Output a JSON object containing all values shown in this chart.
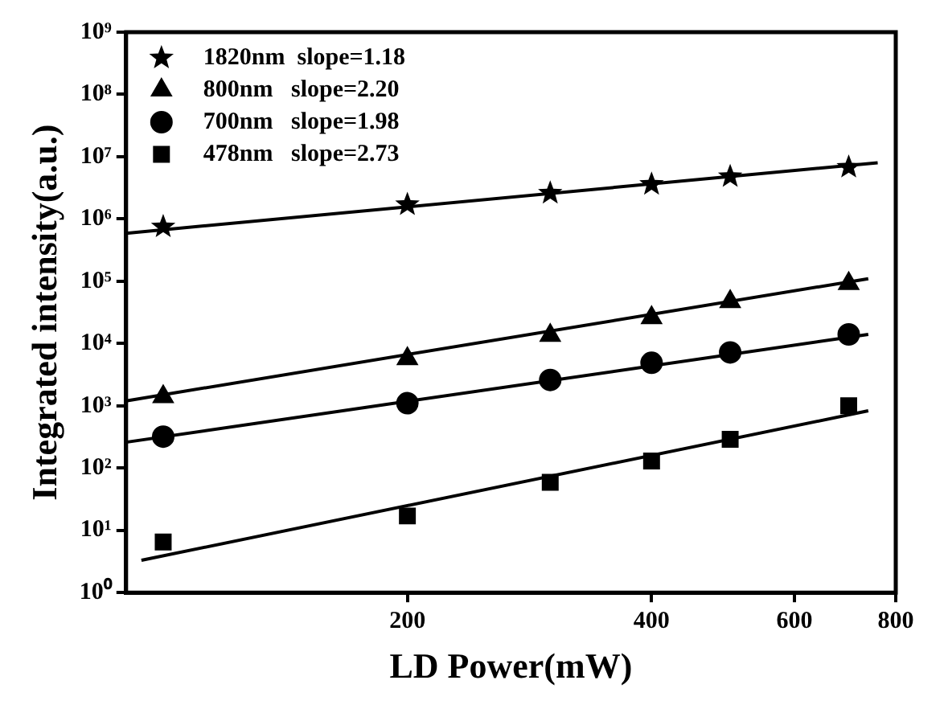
{
  "chart_data": {
    "type": "scatter",
    "xlabel": "LD Power(mW)",
    "ylabel": "Integrated intensity(a.u.)",
    "log": "xy",
    "xlim": [
      90,
      800
    ],
    "xticks": [
      200,
      400,
      600,
      800
    ],
    "ylim": [
      1,
      1000000000
    ],
    "yticks": [
      {
        "value": 1,
        "label": "10⁰"
      },
      {
        "value": 10,
        "label": "10¹"
      },
      {
        "value": 100,
        "label": "10²"
      },
      {
        "value": 1000,
        "label": "10³"
      },
      {
        "value": 10000,
        "label": "10⁴"
      },
      {
        "value": 100000,
        "label": "10⁵"
      },
      {
        "value": 1000000,
        "label": "10⁶"
      },
      {
        "value": 10000000,
        "label": "10⁷"
      },
      {
        "value": 100000000,
        "label": "10⁸"
      },
      {
        "value": 1000000000,
        "label": "10⁹"
      }
    ],
    "grid": false,
    "legend": "top left",
    "series": [
      {
        "name": "1820nm  slope=1.18",
        "color": "#000000",
        "marker": "star",
        "x": [
          100,
          200,
          300,
          400,
          500,
          700
        ],
        "values": [
          750000,
          1700000,
          2600000,
          3600000,
          4800000,
          6800000
        ]
      },
      {
        "name": "800nm   slope=2.20",
        "color": "#000000",
        "marker": "triangle",
        "x": [
          100,
          200,
          300,
          400,
          500,
          700
        ],
        "values": [
          1400,
          5700,
          13500,
          26000,
          47000,
          92000
        ]
      },
      {
        "name": "700nm   slope=1.98",
        "color": "#000000",
        "marker": "circle",
        "x": [
          100,
          200,
          300,
          400,
          500,
          700
        ],
        "values": [
          320,
          1100,
          2600,
          4900,
          7200,
          14000
        ]
      },
      {
        "name": "478nm   slope=2.73",
        "color": "#000000",
        "marker": "square",
        "x": [
          100,
          200,
          300,
          400,
          500,
          700
        ],
        "values": [
          6.5,
          17,
          59,
          130,
          290,
          1000
        ]
      },
      {
        "type": "line",
        "color": "#000000",
        "marker": "none",
        "x": [
          90,
          760
        ],
        "values": [
          590000,
          8000000
        ]
      },
      {
        "type": "line",
        "color": "#000000",
        "marker": "none",
        "x": [
          90,
          740
        ],
        "values": [
          1200,
          110000
        ]
      },
      {
        "type": "line",
        "color": "#000000",
        "marker": "none",
        "x": [
          90,
          740
        ],
        "values": [
          260,
          14000
        ]
      },
      {
        "type": "line",
        "color": "#000000",
        "marker": "none",
        "x": [
          94,
          740
        ],
        "values": [
          3.3,
          830
        ]
      }
    ]
  }
}
